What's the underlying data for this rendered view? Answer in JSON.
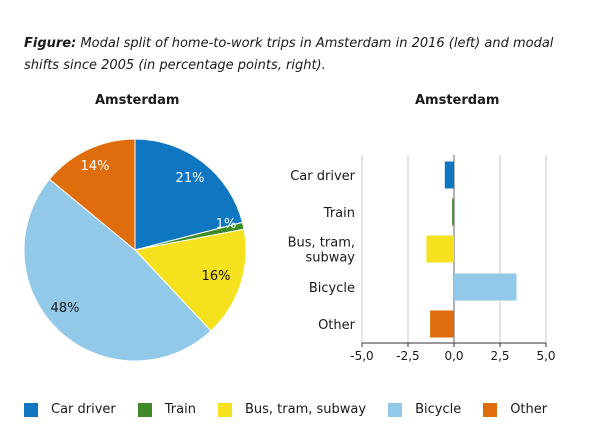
{
  "caption": {
    "label": "Figure:",
    "text": "Modal split of home-to-work trips in Amsterdam in 2016 (left) and modal shifts since 2005 (in percentage points, right)."
  },
  "chart_data": [
    {
      "type": "pie",
      "title": "Amsterdam",
      "categories": [
        "Car driver",
        "Train",
        "Bus, tram, subway",
        "Bicycle",
        "Other"
      ],
      "values": [
        21,
        1,
        16,
        48,
        14
      ],
      "labels": [
        "21%",
        "1%",
        "16%",
        "48%",
        "14%"
      ],
      "colors": [
        "#0f77c2",
        "#3d8a26",
        "#f6e11f",
        "#92c9e9",
        "#e06d0c"
      ]
    },
    {
      "type": "bar",
      "orientation": "horizontal",
      "title": "Amsterdam",
      "categories": [
        "Car driver",
        "Train",
        "Bus, tram, subway",
        "Bicycle",
        "Other"
      ],
      "category_lines": [
        [
          "Car driver"
        ],
        [
          "Train"
        ],
        [
          "Bus, tram,",
          "subway"
        ],
        [
          "Bicycle"
        ],
        [
          "Other"
        ]
      ],
      "values": [
        -0.5,
        -0.1,
        -1.5,
        3.4,
        -1.3
      ],
      "colors": [
        "#0f77c2",
        "#3d8a26",
        "#f6e11f",
        "#92c9e9",
        "#e06d0c"
      ],
      "xlim": [
        -5,
        5
      ],
      "xticks": [
        -5,
        -2.5,
        0,
        2.5,
        5
      ],
      "xtick_labels": [
        "-5,0",
        "-2,5",
        "0,0",
        "2,5",
        "5,0"
      ],
      "grid": true
    }
  ],
  "legend": [
    {
      "label": "Car driver",
      "color": "#0f77c2"
    },
    {
      "label": "Train",
      "color": "#3d8a26"
    },
    {
      "label": "Bus, tram, subway",
      "color": "#f6e11f"
    },
    {
      "label": "Bicycle",
      "color": "#92c9e9"
    },
    {
      "label": "Other",
      "color": "#e06d0c"
    }
  ]
}
